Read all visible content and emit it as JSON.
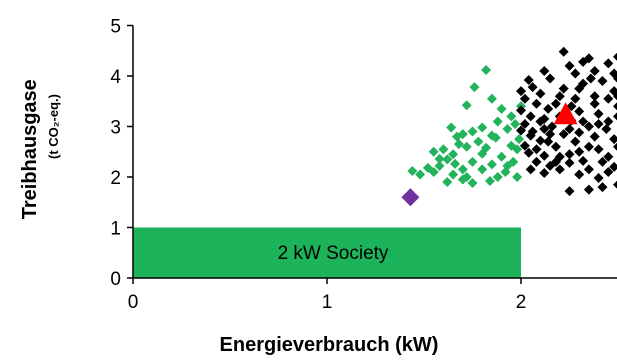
{
  "chart_data": {
    "type": "scatter",
    "xlabel": "Energieverbrauch (kW)",
    "ylabel": "Treibhausgase",
    "ylabel_sub": "(t CO₂-eq.)",
    "xlim": [
      0,
      2.5
    ],
    "ylim": [
      0,
      5
    ],
    "x_ticks": [
      0,
      1,
      2
    ],
    "y_ticks": [
      0,
      1,
      2,
      3,
      4,
      5
    ],
    "grid": false,
    "legend": "none",
    "region": {
      "label": "2 kW Society",
      "x": [
        0,
        2
      ],
      "y": [
        0,
        1
      ],
      "color": "#1db35a"
    },
    "series": [
      {
        "marker": "diamond",
        "color": "#22b35c",
        "points": [
          [
            1.82,
            4.12
          ],
          [
            1.76,
            3.78
          ],
          [
            1.85,
            3.55
          ],
          [
            1.72,
            3.42
          ],
          [
            1.9,
            3.35
          ],
          [
            1.97,
            3.05
          ],
          [
            1.93,
            2.95
          ],
          [
            1.8,
            2.98
          ],
          [
            1.85,
            2.82
          ],
          [
            1.7,
            2.85
          ],
          [
            1.64,
            2.98
          ],
          [
            1.67,
            2.8
          ],
          [
            1.75,
            2.9
          ],
          [
            1.87,
            2.78
          ],
          [
            1.99,
            2.75
          ],
          [
            1.95,
            2.62
          ],
          [
            1.82,
            2.58
          ],
          [
            1.72,
            2.6
          ],
          [
            1.6,
            2.55
          ],
          [
            1.55,
            2.5
          ],
          [
            1.65,
            2.45
          ],
          [
            1.8,
            2.46
          ],
          [
            1.9,
            2.4
          ],
          [
            1.96,
            2.3
          ],
          [
            1.85,
            2.25
          ],
          [
            1.75,
            2.3
          ],
          [
            1.62,
            2.35
          ],
          [
            1.58,
            2.22
          ],
          [
            1.7,
            2.15
          ],
          [
            1.8,
            2.15
          ],
          [
            1.92,
            2.1
          ],
          [
            1.98,
            2.0
          ],
          [
            1.88,
            2.0
          ],
          [
            1.72,
            2.0
          ],
          [
            1.65,
            2.05
          ],
          [
            1.55,
            2.1
          ],
          [
            1.62,
            1.9
          ],
          [
            1.75,
            1.88
          ],
          [
            1.48,
            2.05
          ],
          [
            1.44,
            2.12
          ],
          [
            1.52,
            2.18
          ],
          [
            1.66,
            2.26
          ],
          [
            1.78,
            2.7
          ],
          [
            1.95,
            3.2
          ],
          [
            1.88,
            3.1
          ],
          [
            1.7,
            1.95
          ],
          [
            1.84,
            1.92
          ],
          [
            1.93,
            2.22
          ],
          [
            1.58,
            2.36
          ],
          [
            1.68,
            2.65
          ],
          [
            2.0,
            3.4
          ],
          [
            1.98,
            2.55
          ]
        ]
      },
      {
        "marker": "diamond",
        "color": "#000000",
        "points": [
          [
            2.22,
            4.48
          ],
          [
            2.32,
            4.28
          ],
          [
            2.38,
            4.1
          ],
          [
            2.45,
            4.25
          ],
          [
            2.5,
            4.38
          ],
          [
            2.28,
            4.05
          ],
          [
            2.15,
            3.95
          ],
          [
            2.12,
            4.1
          ],
          [
            2.04,
            3.92
          ],
          [
            2.06,
            3.78
          ],
          [
            2.1,
            3.65
          ],
          [
            2.0,
            3.7
          ],
          [
            2.02,
            3.55
          ],
          [
            2.08,
            3.45
          ],
          [
            2.0,
            3.32
          ],
          [
            2.05,
            3.2
          ],
          [
            2.1,
            3.1
          ],
          [
            2.02,
            3.05
          ],
          [
            2.0,
            2.92
          ],
          [
            2.05,
            2.82
          ],
          [
            2.1,
            2.72
          ],
          [
            2.02,
            2.62
          ],
          [
            2.04,
            2.48
          ],
          [
            2.12,
            2.42
          ],
          [
            2.08,
            2.3
          ],
          [
            2.15,
            2.22
          ],
          [
            2.05,
            2.15
          ],
          [
            2.12,
            2.08
          ],
          [
            2.2,
            2.15
          ],
          [
            2.25,
            2.28
          ],
          [
            2.3,
            2.05
          ],
          [
            2.35,
            2.15
          ],
          [
            2.4,
            1.98
          ],
          [
            2.45,
            2.1
          ],
          [
            2.48,
            2.2
          ],
          [
            2.5,
            1.85
          ],
          [
            2.35,
            1.75
          ],
          [
            2.25,
            1.72
          ],
          [
            2.42,
            1.8
          ],
          [
            2.2,
            2.4
          ],
          [
            2.3,
            2.5
          ],
          [
            2.4,
            2.55
          ],
          [
            2.45,
            2.4
          ],
          [
            2.18,
            2.6
          ],
          [
            2.28,
            2.7
          ],
          [
            2.38,
            2.8
          ],
          [
            2.48,
            2.75
          ],
          [
            2.15,
            2.85
          ],
          [
            2.25,
            2.95
          ],
          [
            2.35,
            3.0
          ],
          [
            2.45,
            3.1
          ],
          [
            2.2,
            3.2
          ],
          [
            2.3,
            3.3
          ],
          [
            2.4,
            3.25
          ],
          [
            2.5,
            3.4
          ],
          [
            2.18,
            3.45
          ],
          [
            2.28,
            3.55
          ],
          [
            2.38,
            3.6
          ],
          [
            2.48,
            3.7
          ],
          [
            2.22,
            3.75
          ],
          [
            2.32,
            3.85
          ],
          [
            2.42,
            3.9
          ],
          [
            2.5,
            3.95
          ],
          [
            2.14,
            3.35
          ],
          [
            2.2,
            3.6
          ],
          [
            2.3,
            3.75
          ],
          [
            2.45,
            3.55
          ],
          [
            2.12,
            2.95
          ],
          [
            2.35,
            2.6
          ],
          [
            2.25,
            2.45
          ],
          [
            2.42,
            2.3
          ],
          [
            2.18,
            2.3
          ],
          [
            2.32,
            2.32
          ],
          [
            2.5,
            2.6
          ],
          [
            2.5,
            3.2
          ],
          [
            2.38,
            3.45
          ],
          [
            2.26,
            3.12
          ],
          [
            2.16,
            3.0
          ],
          [
            2.06,
            2.9
          ],
          [
            2.48,
            4.05
          ],
          [
            2.36,
            3.95
          ],
          [
            2.25,
            4.2
          ],
          [
            2.08,
            2.55
          ],
          [
            2.14,
            2.7
          ],
          [
            2.44,
            2.95
          ],
          [
            2.5,
            3.6
          ],
          [
            2.22,
            2.85
          ],
          [
            2.32,
            3.1
          ],
          [
            2.4,
            3.05
          ],
          [
            2.3,
            2.88
          ],
          [
            2.12,
            3.15
          ],
          [
            2.26,
            3.4
          ],
          [
            2.35,
            4.35
          ]
        ]
      },
      {
        "marker": "diamond",
        "color": "#7030a0",
        "points": [
          [
            1.43,
            1.6
          ]
        ]
      },
      {
        "marker": "triangle",
        "color": "#ff0000",
        "points": [
          [
            2.23,
            3.22
          ]
        ]
      }
    ]
  }
}
